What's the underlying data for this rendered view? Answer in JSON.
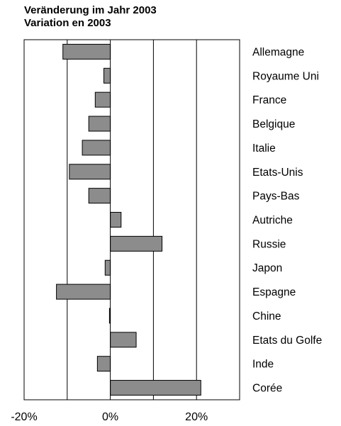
{
  "chart_data": {
    "type": "bar",
    "orientation": "horizontal",
    "title": "Veränderung im Jahr 2003",
    "subtitle": "Variation en 2003",
    "categories": [
      "Allemagne",
      "Royaume Uni",
      "France",
      "Belgique",
      "Italie",
      "Etats-Unis",
      "Pays-Bas",
      "Autriche",
      "Russie",
      "Japon",
      "Espagne",
      "Chine",
      "Etats du Golfe",
      "Inde",
      "Corée"
    ],
    "values": [
      -11,
      -1.5,
      -3.5,
      -5,
      -6.5,
      -9.5,
      -5,
      2.5,
      12,
      -1.2,
      -12.5,
      -0.2,
      6,
      -3,
      21
    ],
    "xlim": [
      -20,
      30
    ],
    "xticks": [
      -20,
      0,
      20
    ],
    "xtick_labels": [
      "-20%",
      "0%",
      "20%"
    ],
    "grid": "vertical lines at -10%, 10%, 20%",
    "bar_color": "#8c8c8c",
    "xlabel": "",
    "ylabel": ""
  }
}
